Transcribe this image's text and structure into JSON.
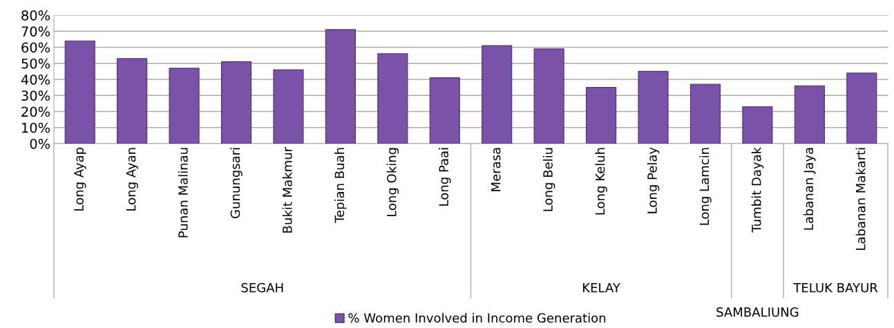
{
  "chart_data": {
    "type": "bar",
    "categories": [
      "Long Ayap",
      "Long Ayan",
      "Punan Malinau",
      "Gunungsari",
      "Bukit Makmur",
      "Tepian Buah",
      "Long Oking",
      "Long Paai",
      "Merasa",
      "Long Beliu",
      "Long Keluh",
      "Long Pelay",
      "Long Lamcin",
      "Tumbit Dayak",
      "Labanan Jaya",
      "Labanan Makarti"
    ],
    "series": [
      {
        "name": "% Women Involved in Income Generation",
        "color": "#7a52a8",
        "values": [
          0.64,
          0.53,
          0.47,
          0.51,
          0.46,
          0.71,
          0.56,
          0.41,
          0.61,
          0.59,
          0.35,
          0.45,
          0.37,
          0.23,
          0.36,
          0.44
        ]
      }
    ],
    "ylim": [
      0,
      0.8
    ],
    "yticks": [
      {
        "value": 0,
        "label": "0%"
      },
      {
        "value": 0.1,
        "label": "10%"
      },
      {
        "value": 0.2,
        "label": "20%"
      },
      {
        "value": 0.3,
        "label": "30%"
      },
      {
        "value": 0.4,
        "label": "40%"
      },
      {
        "value": 0.5,
        "label": "50%"
      },
      {
        "value": 0.6,
        "label": "60%"
      },
      {
        "value": 0.7,
        "label": "70%"
      },
      {
        "value": 0.8,
        "label": "80%"
      }
    ],
    "annotations": [
      "SEGAH",
      "KELAY",
      "SAMBALIUNG",
      "TELUK BAYUR"
    ],
    "grid": "y",
    "legend": "bottom"
  }
}
